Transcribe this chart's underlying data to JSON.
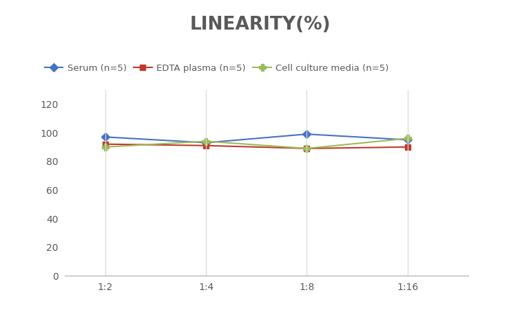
{
  "title": "LINEARITY(%)",
  "title_fontsize": 19,
  "title_fontweight": "bold",
  "title_color": "#595959",
  "x_labels": [
    "1:2",
    "1:4",
    "1:8",
    "1:16"
  ],
  "x_values": [
    1,
    2,
    3,
    4
  ],
  "series": [
    {
      "label": "Serum (n=5)",
      "values": [
        97,
        93,
        99,
        95
      ],
      "color": "#4472C4",
      "marker": "D",
      "markersize": 6,
      "linewidth": 1.5
    },
    {
      "label": "EDTA plasma (n=5)",
      "values": [
        92,
        91,
        89,
        90
      ],
      "color": "#C0392B",
      "marker": "s",
      "markersize": 6,
      "linewidth": 1.5
    },
    {
      "label": "Cell culture media (n=5)",
      "values": [
        90,
        94,
        89,
        96
      ],
      "color": "#9BBB59",
      "marker": "P",
      "markersize": 7,
      "linewidth": 1.5
    }
  ],
  "ylim": [
    0,
    130
  ],
  "yticks": [
    0,
    20,
    40,
    60,
    80,
    100,
    120
  ],
  "background_color": "#ffffff",
  "grid_color": "#d8d8d8",
  "legend_fontsize": 9.5,
  "tick_fontsize": 10,
  "tick_color": "#595959"
}
